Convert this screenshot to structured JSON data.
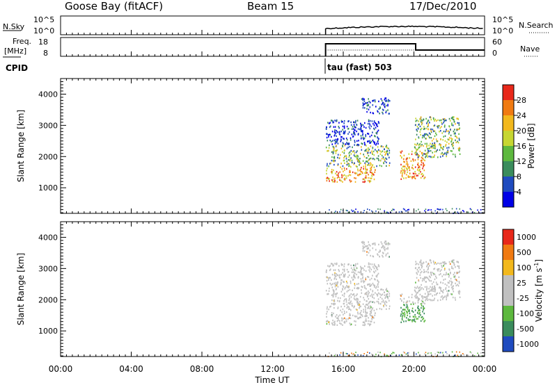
{
  "header": {
    "station": "Goose Bay (fitACF)",
    "beam": "Beam 15",
    "date": "17/Dec/2010"
  },
  "noise_panel": {
    "left_label": "N.Sky",
    "right_label": "N.Search",
    "ticks_left": [
      "10^5",
      "10^0"
    ],
    "ticks_right": [
      "10^5",
      "10^0"
    ]
  },
  "freq_panel": {
    "left_label_line1": "Freq.",
    "left_label_line2": "[MHz]",
    "right_label": "Nave",
    "ticks_left": [
      "18",
      "8"
    ],
    "ticks_right": [
      "60",
      "0"
    ]
  },
  "cpid": {
    "label": "CPID",
    "mode": "tau (fast) 503"
  },
  "colors": {
    "power": [
      "#0000e6",
      "#1f4bbf",
      "#3a8c5c",
      "#5db83e",
      "#c6d632",
      "#f2b81d",
      "#f07a12",
      "#e8281a"
    ],
    "velocity": [
      "#e8281a",
      "#f07a12",
      "#f2b81d",
      "#c0c0c0",
      "#c0c0c0",
      "#5db83e",
      "#3a8c5c",
      "#1f4bbf"
    ]
  },
  "chart_data": [
    {
      "type": "heatmap",
      "title": "Power",
      "xlabel": "",
      "ylabel": "Slant Range [km]",
      "xlim": [
        "00:00",
        "24:00"
      ],
      "ylim": [
        180,
        4500
      ],
      "ytick_labels": [
        "1000",
        "2000",
        "3000",
        "4000"
      ],
      "colorbar": {
        "label": "Power [dB]",
        "tick_labels": [
          "28",
          "24",
          "20",
          "16",
          "12",
          "8",
          "4"
        ],
        "range": [
          0,
          32
        ]
      },
      "data_start_time": "15:00",
      "regions": [
        {
          "t0": 15.0,
          "t1": 17.8,
          "r0": 1200,
          "r1": 1700,
          "level": "high"
        },
        {
          "t0": 15.0,
          "t1": 18.6,
          "r0": 1700,
          "r1": 2400,
          "level": "mid"
        },
        {
          "t0": 15.0,
          "t1": 18.0,
          "r0": 2400,
          "r1": 3200,
          "level": "low"
        },
        {
          "t0": 19.2,
          "t1": 20.6,
          "r0": 1300,
          "r1": 2200,
          "level": "high"
        },
        {
          "t0": 20.0,
          "t1": 22.6,
          "r0": 2000,
          "r1": 3300,
          "level": "mid"
        },
        {
          "t0": 17.0,
          "t1": 18.6,
          "r0": 3400,
          "r1": 3900,
          "level": "low"
        }
      ]
    },
    {
      "type": "heatmap",
      "title": "Velocity",
      "xlabel": "Time UT",
      "ylabel": "Slant Range [km]",
      "xlim": [
        "00:00",
        "24:00"
      ],
      "ylim": [
        180,
        4500
      ],
      "ytick_labels": [
        "1000",
        "2000",
        "3000",
        "4000"
      ],
      "xtick_labels": [
        "00:00",
        "04:00",
        "08:00",
        "12:00",
        "16:00",
        "20:00",
        "00:00"
      ],
      "colorbar": {
        "label": "Velocity [m s^-1]",
        "tick_labels": [
          "1000",
          "500",
          "100",
          "25",
          "-25",
          "-100",
          "-500",
          "-1000"
        ]
      },
      "data_start_time": "15:00"
    }
  ],
  "axes": {
    "ylabel": "Slant Range [km]",
    "xlabel": "Time UT",
    "power_cb_label": "Power [dB]",
    "vel_cb_label": "Velocity",
    "vel_cb_unit": "[m s",
    "vel_cb_exp": "-1",
    "vel_cb_close": "]"
  }
}
